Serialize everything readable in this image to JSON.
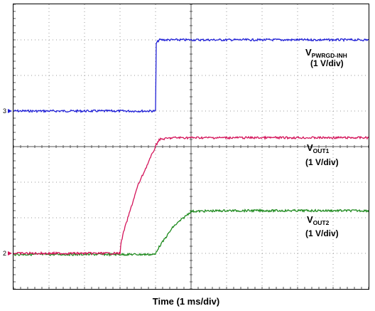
{
  "chart_data": {
    "type": "line",
    "xlabel": "Time (1 ms/div)",
    "x_unit": "ms",
    "x_divisions": 10,
    "y_divisions": 8,
    "grid": true,
    "x": [
      0,
      1,
      2,
      3,
      3.01,
      3.1,
      3.5,
      4,
      4.02,
      4.1,
      4.5,
      5,
      6,
      7,
      8,
      9,
      10
    ],
    "series": [
      {
        "name": "VPWRGD-INH",
        "name_main": "V",
        "name_sub": "PWRGD-INH",
        "scale": "(1 V/div)",
        "color": "#1f1fd6",
        "ground_marker": "3",
        "ground_div": 5,
        "values": [
          0,
          0,
          0,
          0,
          0,
          0,
          0,
          0,
          1.9,
          2.0,
          2.0,
          2.0,
          2.0,
          2.0,
          2.0,
          2.0,
          2.0
        ]
      },
      {
        "name": "VOUT1",
        "name_main": "V",
        "name_sub": "OUT1",
        "scale": "(1 V/div)",
        "color": "#d4145a",
        "ground_marker": "2",
        "ground_div": 1,
        "values": [
          0,
          0,
          0,
          0,
          0.2,
          0.6,
          1.9,
          3.0,
          3.05,
          3.2,
          3.25,
          3.25,
          3.25,
          3.25,
          3.25,
          3.25,
          3.25
        ]
      },
      {
        "name": "VOUT2",
        "name_main": "V",
        "name_sub": "OUT2",
        "scale": "(1 V/div)",
        "color": "#1e8a1e",
        "ground_marker": "",
        "ground_div": 1,
        "values": [
          -0.03,
          -0.03,
          -0.03,
          -0.03,
          -0.03,
          -0.03,
          -0.03,
          -0.03,
          0.05,
          0.18,
          0.75,
          1.18,
          1.2,
          1.2,
          1.2,
          1.2,
          1.2
        ]
      }
    ]
  }
}
